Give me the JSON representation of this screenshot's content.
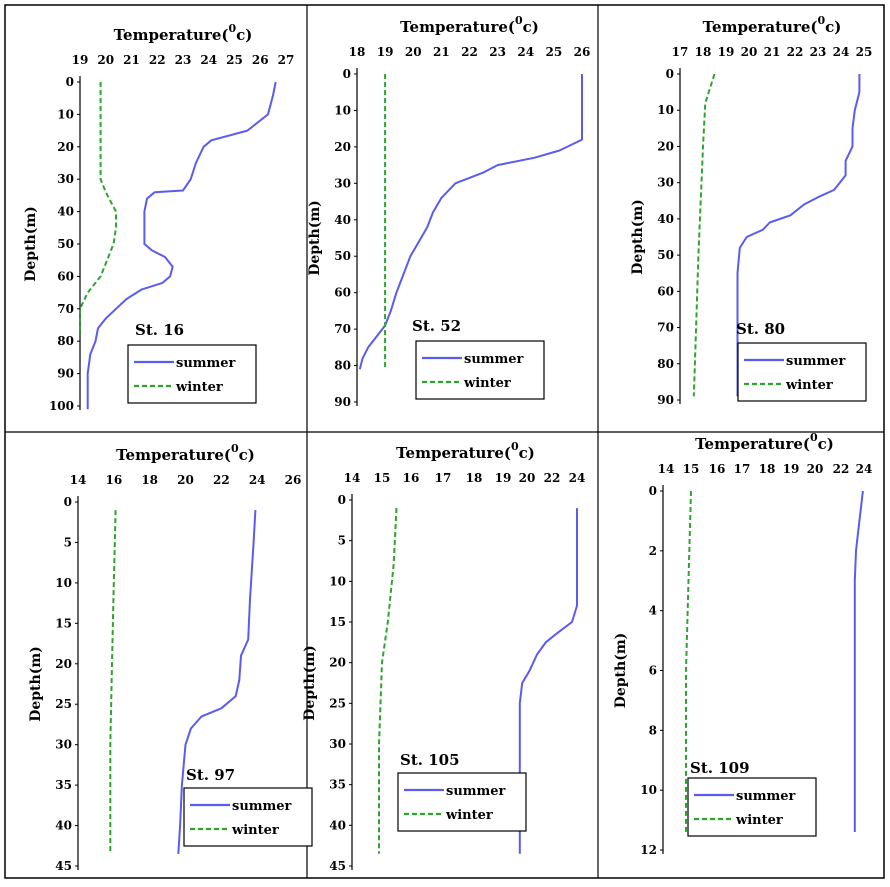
{
  "colors": {
    "summer": "#5b5bf0",
    "winter": "#2fa32f",
    "frame": "#000000"
  },
  "legend": {
    "summer": "summer",
    "winter": "winter"
  },
  "axis_titles": {
    "x": "Temperature(",
    "x_sup": "0",
    "x_unit": "c)",
    "y": "Depth(m)"
  },
  "chart_data": [
    {
      "type": "line",
      "station": "St. 16",
      "xlabel": "Temperature(0c)",
      "ylabel": "Depth(m)",
      "xticks": [
        19,
        20,
        21,
        22,
        23,
        24,
        25,
        26,
        27
      ],
      "xlim": [
        19,
        27
      ],
      "yticks": [
        0,
        10,
        20,
        30,
        40,
        50,
        60,
        70,
        80,
        90,
        100
      ],
      "ylim": [
        0,
        100
      ],
      "series": [
        {
          "name": "summer",
          "points": [
            [
              26.6,
              0
            ],
            [
              26.5,
              4
            ],
            [
              26.3,
              10
            ],
            [
              25.5,
              15
            ],
            [
              24.1,
              18
            ],
            [
              23.8,
              20
            ],
            [
              23.5,
              25
            ],
            [
              23.3,
              30
            ],
            [
              23.0,
              33.5
            ],
            [
              21.9,
              34
            ],
            [
              21.6,
              36
            ],
            [
              21.5,
              40
            ],
            [
              21.5,
              45
            ],
            [
              21.5,
              50
            ],
            [
              21.8,
              52
            ],
            [
              22.3,
              54
            ],
            [
              22.6,
              57
            ],
            [
              22.5,
              60
            ],
            [
              22.2,
              62
            ],
            [
              21.4,
              64
            ],
            [
              20.8,
              67
            ],
            [
              20.4,
              70
            ],
            [
              20.0,
              73
            ],
            [
              19.7,
              76
            ],
            [
              19.6,
              80
            ],
            [
              19.4,
              84
            ],
            [
              19.3,
              90
            ],
            [
              19.3,
              101
            ]
          ]
        },
        {
          "name": "winter",
          "points": [
            [
              19.8,
              0
            ],
            [
              19.8,
              10
            ],
            [
              19.8,
              20
            ],
            [
              19.8,
              30
            ],
            [
              20.0,
              34
            ],
            [
              20.4,
              40
            ],
            [
              20.4,
              45
            ],
            [
              20.3,
              50
            ],
            [
              20.0,
              56
            ],
            [
              19.8,
              60
            ],
            [
              19.3,
              65
            ],
            [
              19.0,
              70
            ],
            [
              19.0,
              78
            ]
          ]
        }
      ]
    },
    {
      "type": "line",
      "station": "St. 52",
      "xlabel": "Temperature(0c)",
      "ylabel": "Depth(m)",
      "xticks": [
        18,
        19,
        20,
        21,
        22,
        23,
        24,
        25,
        26
      ],
      "xlim": [
        18,
        26
      ],
      "yticks": [
        0,
        10,
        20,
        30,
        40,
        50,
        60,
        70,
        80,
        90
      ],
      "ylim": [
        0,
        90
      ],
      "series": [
        {
          "name": "summer",
          "points": [
            [
              26.0,
              0
            ],
            [
              26.0,
              10
            ],
            [
              26.0,
              18
            ],
            [
              25.2,
              21
            ],
            [
              24.3,
              23
            ],
            [
              23.0,
              25
            ],
            [
              22.5,
              27
            ],
            [
              21.5,
              30
            ],
            [
              21.0,
              34
            ],
            [
              20.7,
              38
            ],
            [
              20.5,
              42
            ],
            [
              20.2,
              46
            ],
            [
              19.9,
              50
            ],
            [
              19.6,
              56
            ],
            [
              19.4,
              60
            ],
            [
              19.2,
              65
            ],
            [
              19.0,
              69
            ],
            [
              18.7,
              72
            ],
            [
              18.4,
              75
            ],
            [
              18.2,
              78
            ],
            [
              18.1,
              81
            ]
          ]
        },
        {
          "name": "winter",
          "points": [
            [
              19.0,
              0
            ],
            [
              19.0,
              20
            ],
            [
              19.0,
              40
            ],
            [
              19.0,
              60
            ],
            [
              19.0,
              81
            ]
          ]
        }
      ]
    },
    {
      "type": "line",
      "station": "St. 80",
      "xlabel": "Temperature(0c)",
      "ylabel": "Depth(m)",
      "xticks": [
        17,
        18,
        19,
        20,
        21,
        22,
        23,
        24,
        25
      ],
      "xlim": [
        17,
        25
      ],
      "yticks": [
        0,
        10,
        20,
        30,
        40,
        50,
        60,
        70,
        80,
        90
      ],
      "ylim": [
        0,
        90
      ],
      "series": [
        {
          "name": "summer",
          "points": [
            [
              24.8,
              0
            ],
            [
              24.8,
              5
            ],
            [
              24.6,
              10
            ],
            [
              24.5,
              15
            ],
            [
              24.5,
              20
            ],
            [
              24.2,
              24
            ],
            [
              24.2,
              28
            ],
            [
              23.7,
              32
            ],
            [
              23.0,
              34
            ],
            [
              22.4,
              36
            ],
            [
              21.8,
              39
            ],
            [
              20.9,
              41
            ],
            [
              20.6,
              43
            ],
            [
              19.9,
              45
            ],
            [
              19.6,
              48
            ],
            [
              19.5,
              55
            ],
            [
              19.5,
              65
            ],
            [
              19.5,
              75
            ],
            [
              19.5,
              89
            ]
          ]
        },
        {
          "name": "winter",
          "points": [
            [
              18.5,
              0
            ],
            [
              18.1,
              8
            ],
            [
              18.0,
              20
            ],
            [
              17.9,
              35
            ],
            [
              17.8,
              50
            ],
            [
              17.7,
              70
            ],
            [
              17.6,
              89
            ]
          ]
        }
      ]
    },
    {
      "type": "line",
      "station": "St. 97",
      "xlabel": "Temperature(0c)",
      "ylabel": "Depth(m)",
      "xticks": [
        14,
        16,
        18,
        20,
        22,
        24,
        26
      ],
      "xlim": [
        14,
        26
      ],
      "yticks": [
        0,
        5,
        10,
        15,
        20,
        25,
        30,
        35,
        40,
        45
      ],
      "ylim": [
        0,
        45
      ],
      "series": [
        {
          "name": "summer",
          "points": [
            [
              23.9,
              1
            ],
            [
              23.8,
              5
            ],
            [
              23.6,
              12
            ],
            [
              23.5,
              17
            ],
            [
              23.1,
              19
            ],
            [
              23.0,
              22
            ],
            [
              22.8,
              24
            ],
            [
              22.0,
              25.5
            ],
            [
              20.9,
              26.5
            ],
            [
              20.3,
              28
            ],
            [
              20.0,
              30
            ],
            [
              19.8,
              35
            ],
            [
              19.7,
              40
            ],
            [
              19.6,
              43.5
            ]
          ]
        },
        {
          "name": "winter",
          "points": [
            [
              16.1,
              1
            ],
            [
              16.0,
              10
            ],
            [
              15.9,
              20
            ],
            [
              15.8,
              30
            ],
            [
              15.8,
              43.5
            ]
          ]
        }
      ]
    },
    {
      "type": "line",
      "station": "St. 105",
      "xlabel": "Temperature(0c)",
      "ylabel": "Depth(m)",
      "xticks": [
        14,
        15,
        16,
        17,
        18,
        19,
        20,
        22,
        24
      ],
      "xlim": [
        14,
        24
      ],
      "yticks": [
        0,
        5,
        10,
        15,
        20,
        25,
        30,
        35,
        40,
        45
      ],
      "ylim": [
        0,
        45
      ],
      "series": [
        {
          "name": "summer",
          "points": [
            [
              24.0,
              1
            ],
            [
              24.0,
              8
            ],
            [
              24.0,
              13
            ],
            [
              23.6,
              15
            ],
            [
              22.3,
              16.5
            ],
            [
              21.5,
              17.5
            ],
            [
              20.8,
              19
            ],
            [
              20.2,
              21
            ],
            [
              19.8,
              22.5
            ],
            [
              19.7,
              25
            ],
            [
              19.7,
              30
            ],
            [
              19.7,
              35
            ],
            [
              19.7,
              40
            ],
            [
              19.7,
              43.5
            ]
          ]
        },
        {
          "name": "winter",
          "points": [
            [
              15.5,
              1
            ],
            [
              15.4,
              8
            ],
            [
              15.2,
              15
            ],
            [
              15.0,
              20
            ],
            [
              14.9,
              30
            ],
            [
              14.9,
              43.5
            ]
          ]
        }
      ]
    },
    {
      "type": "line",
      "station": "St. 109",
      "xlabel": "Temperature(0c)",
      "ylabel": "Depth(m)",
      "xticks": [
        14,
        15,
        16,
        17,
        18,
        19,
        20,
        22,
        24
      ],
      "xlim": [
        14,
        24
      ],
      "yticks": [
        0,
        2,
        4,
        6,
        8,
        10,
        12
      ],
      "ylim": [
        0,
        12
      ],
      "series": [
        {
          "name": "summer",
          "points": [
            [
              23.9,
              0
            ],
            [
              23.6,
              1
            ],
            [
              23.3,
              2
            ],
            [
              23.2,
              3
            ],
            [
              23.2,
              5
            ],
            [
              23.2,
              8
            ],
            [
              23.2,
              11.4
            ]
          ]
        },
        {
          "name": "winter",
          "points": [
            [
              15.0,
              0
            ],
            [
              14.9,
              3
            ],
            [
              14.8,
              6
            ],
            [
              14.8,
              11.4
            ]
          ]
        }
      ]
    }
  ]
}
